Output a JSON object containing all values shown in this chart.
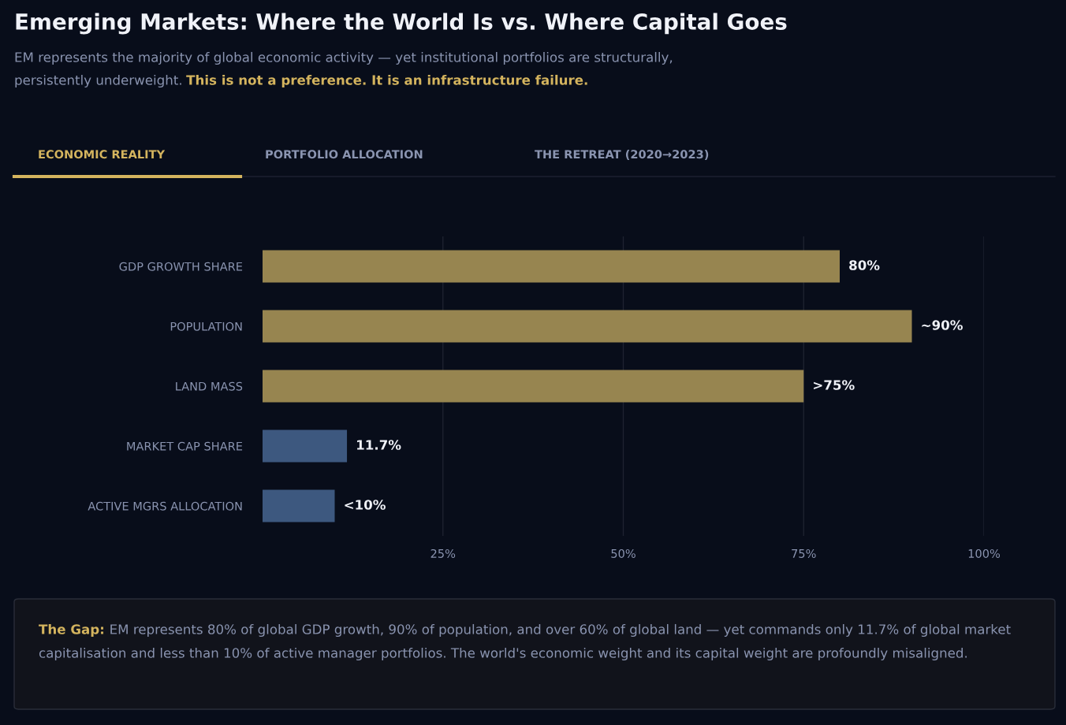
{
  "chart_data": {
    "type": "bar",
    "orientation": "horizontal",
    "title": "Emerging Markets: Where the World Is vs. Where Capital Goes",
    "subtitle": "EM represents the majority of global economic activity — yet institutional portfolios are structurally, persistently underweight.",
    "categories": [
      "GDP GROWTH SHARE",
      "POPULATION",
      "LAND MASS",
      "MARKET CAP SHARE",
      "ACTIVE MGRS ALLOCATION"
    ],
    "values": [
      80,
      90,
      75,
      11.7,
      10
    ],
    "colors": [
      "#978550",
      "#978550",
      "#978550",
      "#3d587f",
      "#3d587f"
    ],
    "value_labels": [
      "80%",
      "~90%",
      ">75%",
      "11.7%",
      "<10%"
    ],
    "xlim": [
      0,
      100
    ],
    "xticks": [
      {
        "value": 25,
        "label": "25%"
      },
      {
        "value": 50,
        "label": "50%"
      },
      {
        "value": 75,
        "label": "75%"
      },
      {
        "value": 100,
        "label": "100%"
      }
    ],
    "grid": "x",
    "legend": false,
    "annotations": [
      "This is not a preference. It is an infrastructure failure.",
      "ECONOMIC REALITY",
      "PORTFOLIO ALLOCATION",
      "THE RETREAT (2020→2023)",
      "The Gap:",
      "EM represents 80% of global GDP growth, 90% of population, and over 60% of global land — yet commands only 11.7% of global market capitalisation and less than 10% of active manager portfolios. The world's economic weight and its capital weight are profoundly misaligned."
    ]
  }
}
